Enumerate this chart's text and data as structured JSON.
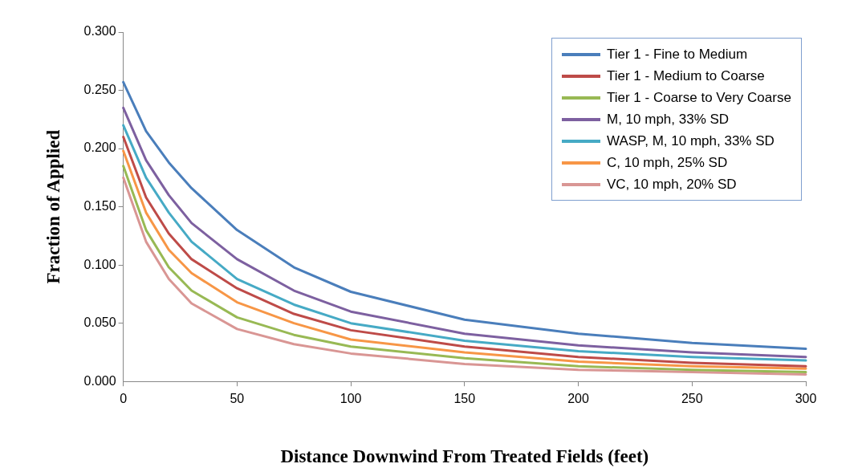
{
  "chart_data": {
    "type": "line",
    "xlabel": "Distance Downwind From Treated Fields (feet)",
    "ylabel": "Fraction of Applied",
    "xlim": [
      0,
      300
    ],
    "xticks": [
      0,
      50,
      100,
      150,
      200,
      250,
      300
    ],
    "ylim": [
      0,
      0.3
    ],
    "yticks": [
      {
        "value": 0,
        "label": "0.000"
      },
      {
        "value": 0.05,
        "label": "0.050"
      },
      {
        "value": 0.1,
        "label": "0.100"
      },
      {
        "value": 0.15,
        "label": "0.150"
      },
      {
        "value": 0.2,
        "label": "0.200"
      },
      {
        "value": 0.25,
        "label": "0.250"
      },
      {
        "value": 0.3,
        "label": "0.300"
      }
    ],
    "x": [
      0,
      10,
      20,
      30,
      50,
      75,
      100,
      150,
      200,
      250,
      300
    ],
    "grid": false,
    "legend": "top right",
    "marker": "none",
    "line_style": "solid",
    "series": [
      {
        "name": "Tier 1 - Fine to Medium",
        "color": "#4a7ebb",
        "values": [
          0.257,
          0.215,
          0.188,
          0.166,
          0.13,
          0.098,
          0.077,
          0.053,
          0.041,
          0.033,
          0.028
        ]
      },
      {
        "name": "Tier 1 - Medium to Coarse",
        "color": "#be4b48",
        "values": [
          0.21,
          0.158,
          0.127,
          0.105,
          0.08,
          0.058,
          0.044,
          0.03,
          0.021,
          0.016,
          0.013
        ]
      },
      {
        "name": "Tier 1 - Coarse to Very Coarse",
        "color": "#98b954",
        "values": [
          0.185,
          0.13,
          0.098,
          0.078,
          0.055,
          0.04,
          0.03,
          0.02,
          0.013,
          0.01,
          0.008
        ]
      },
      {
        "name": "M, 10 mph, 33% SD",
        "color": "#7d60a0",
        "values": [
          0.235,
          0.19,
          0.16,
          0.136,
          0.105,
          0.078,
          0.06,
          0.041,
          0.031,
          0.025,
          0.021
        ]
      },
      {
        "name": "WASP, M, 10 mph, 33% SD",
        "color": "#46aac5",
        "values": [
          0.22,
          0.175,
          0.145,
          0.12,
          0.088,
          0.066,
          0.05,
          0.035,
          0.026,
          0.021,
          0.018
        ]
      },
      {
        "name": "C, 10 mph, 25% SD",
        "color": "#f79646",
        "values": [
          0.198,
          0.145,
          0.113,
          0.093,
          0.068,
          0.05,
          0.036,
          0.025,
          0.017,
          0.013,
          0.011
        ]
      },
      {
        "name": "VC, 10 mph, 20% SD",
        "color": "#d99694",
        "values": [
          0.175,
          0.12,
          0.088,
          0.067,
          0.045,
          0.032,
          0.024,
          0.015,
          0.01,
          0.008,
          0.006
        ]
      }
    ]
  }
}
